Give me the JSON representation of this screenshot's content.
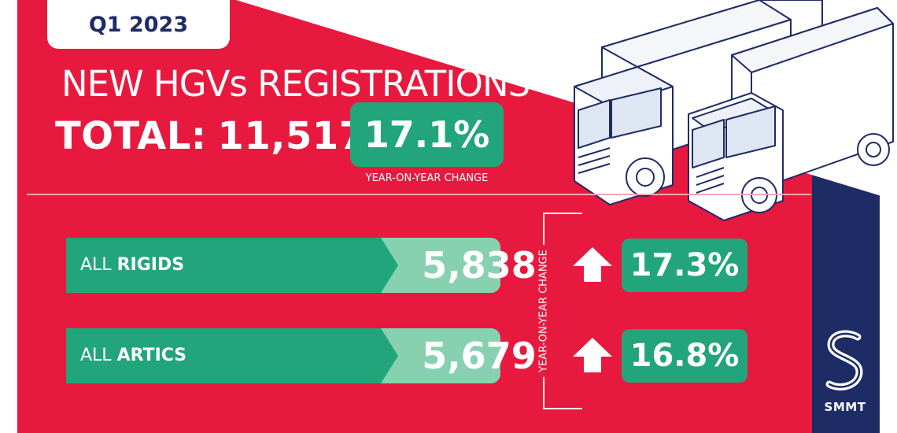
{
  "period": "Q1 2023",
  "headline": "NEW HGVs REGISTRATIONS",
  "total": {
    "label": "TOTAL:",
    "value": "11,517",
    "change": "17.1%",
    "change_caption": "YEAR-ON-YEAR CHANGE"
  },
  "yoy_label": "YEAR-ON-YEAR CHANGE",
  "categories": [
    {
      "prefix": "ALL",
      "name": "RIGIDS",
      "value": "5,838",
      "change": "17.3%",
      "direction": "up"
    },
    {
      "prefix": "ALL",
      "name": "ARTICS",
      "value": "5,679",
      "change": "16.8%",
      "direction": "up"
    }
  ],
  "brand": {
    "name": "SMMT",
    "logo": "smmt-s-logo"
  },
  "colors": {
    "red": "#e8193f",
    "navy": "#1e2c66",
    "green": "#22a57a",
    "light_green": "#87d1b1",
    "white": "#ffffff"
  },
  "illustration": "two-trucks-isometric"
}
